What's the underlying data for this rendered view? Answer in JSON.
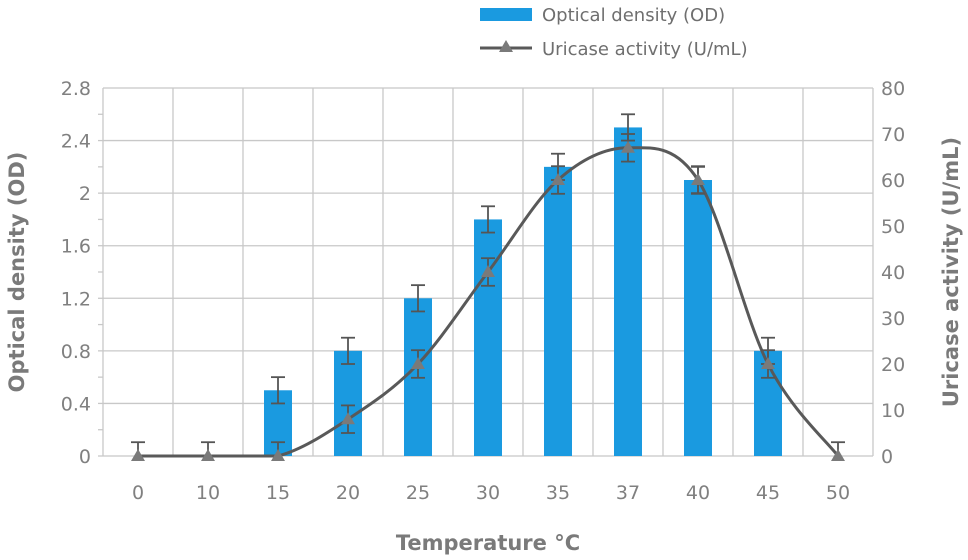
{
  "chart_data": {
    "type": "bar+line",
    "categories": [
      "0",
      "10",
      "15",
      "20",
      "25",
      "30",
      "35",
      "37",
      "40",
      "45",
      "50"
    ],
    "series": [
      {
        "name": "Optical density (OD)",
        "type": "bar",
        "axis": "left",
        "values": [
          0,
          0,
          0.5,
          0.8,
          1.2,
          1.8,
          2.2,
          2.5,
          2.1,
          0.8,
          0
        ],
        "errors": [
          0.1,
          0.1,
          0.1,
          0.1,
          0.1,
          0.1,
          0.1,
          0.1,
          0.1,
          0.1,
          0.1
        ],
        "color": "#1a9ae0"
      },
      {
        "name": "Uricase activity (U/mL)",
        "type": "line",
        "axis": "right",
        "marker": "triangle",
        "values": [
          0,
          0,
          0,
          8,
          20,
          40,
          60,
          67,
          60,
          20,
          0
        ],
        "errors": [
          3,
          3,
          3,
          3,
          3,
          3,
          3,
          3,
          3,
          3,
          3
        ],
        "color": "#595959"
      }
    ],
    "xlabel": "Temperature °C",
    "ylabel": "Optical  density (OD)",
    "y2label": "Uricase activity (U/mL)",
    "ylim": [
      0,
      2.8
    ],
    "y2lim": [
      0,
      80
    ],
    "yticks": [
      "0",
      "0.4",
      "0.8",
      "1.2",
      "1.6",
      "2",
      "2.4",
      "2.8"
    ],
    "y2ticks": [
      "0",
      "10",
      "20",
      "30",
      "40",
      "50",
      "60",
      "70",
      "80"
    ],
    "grid": true,
    "legend": "top-center"
  }
}
